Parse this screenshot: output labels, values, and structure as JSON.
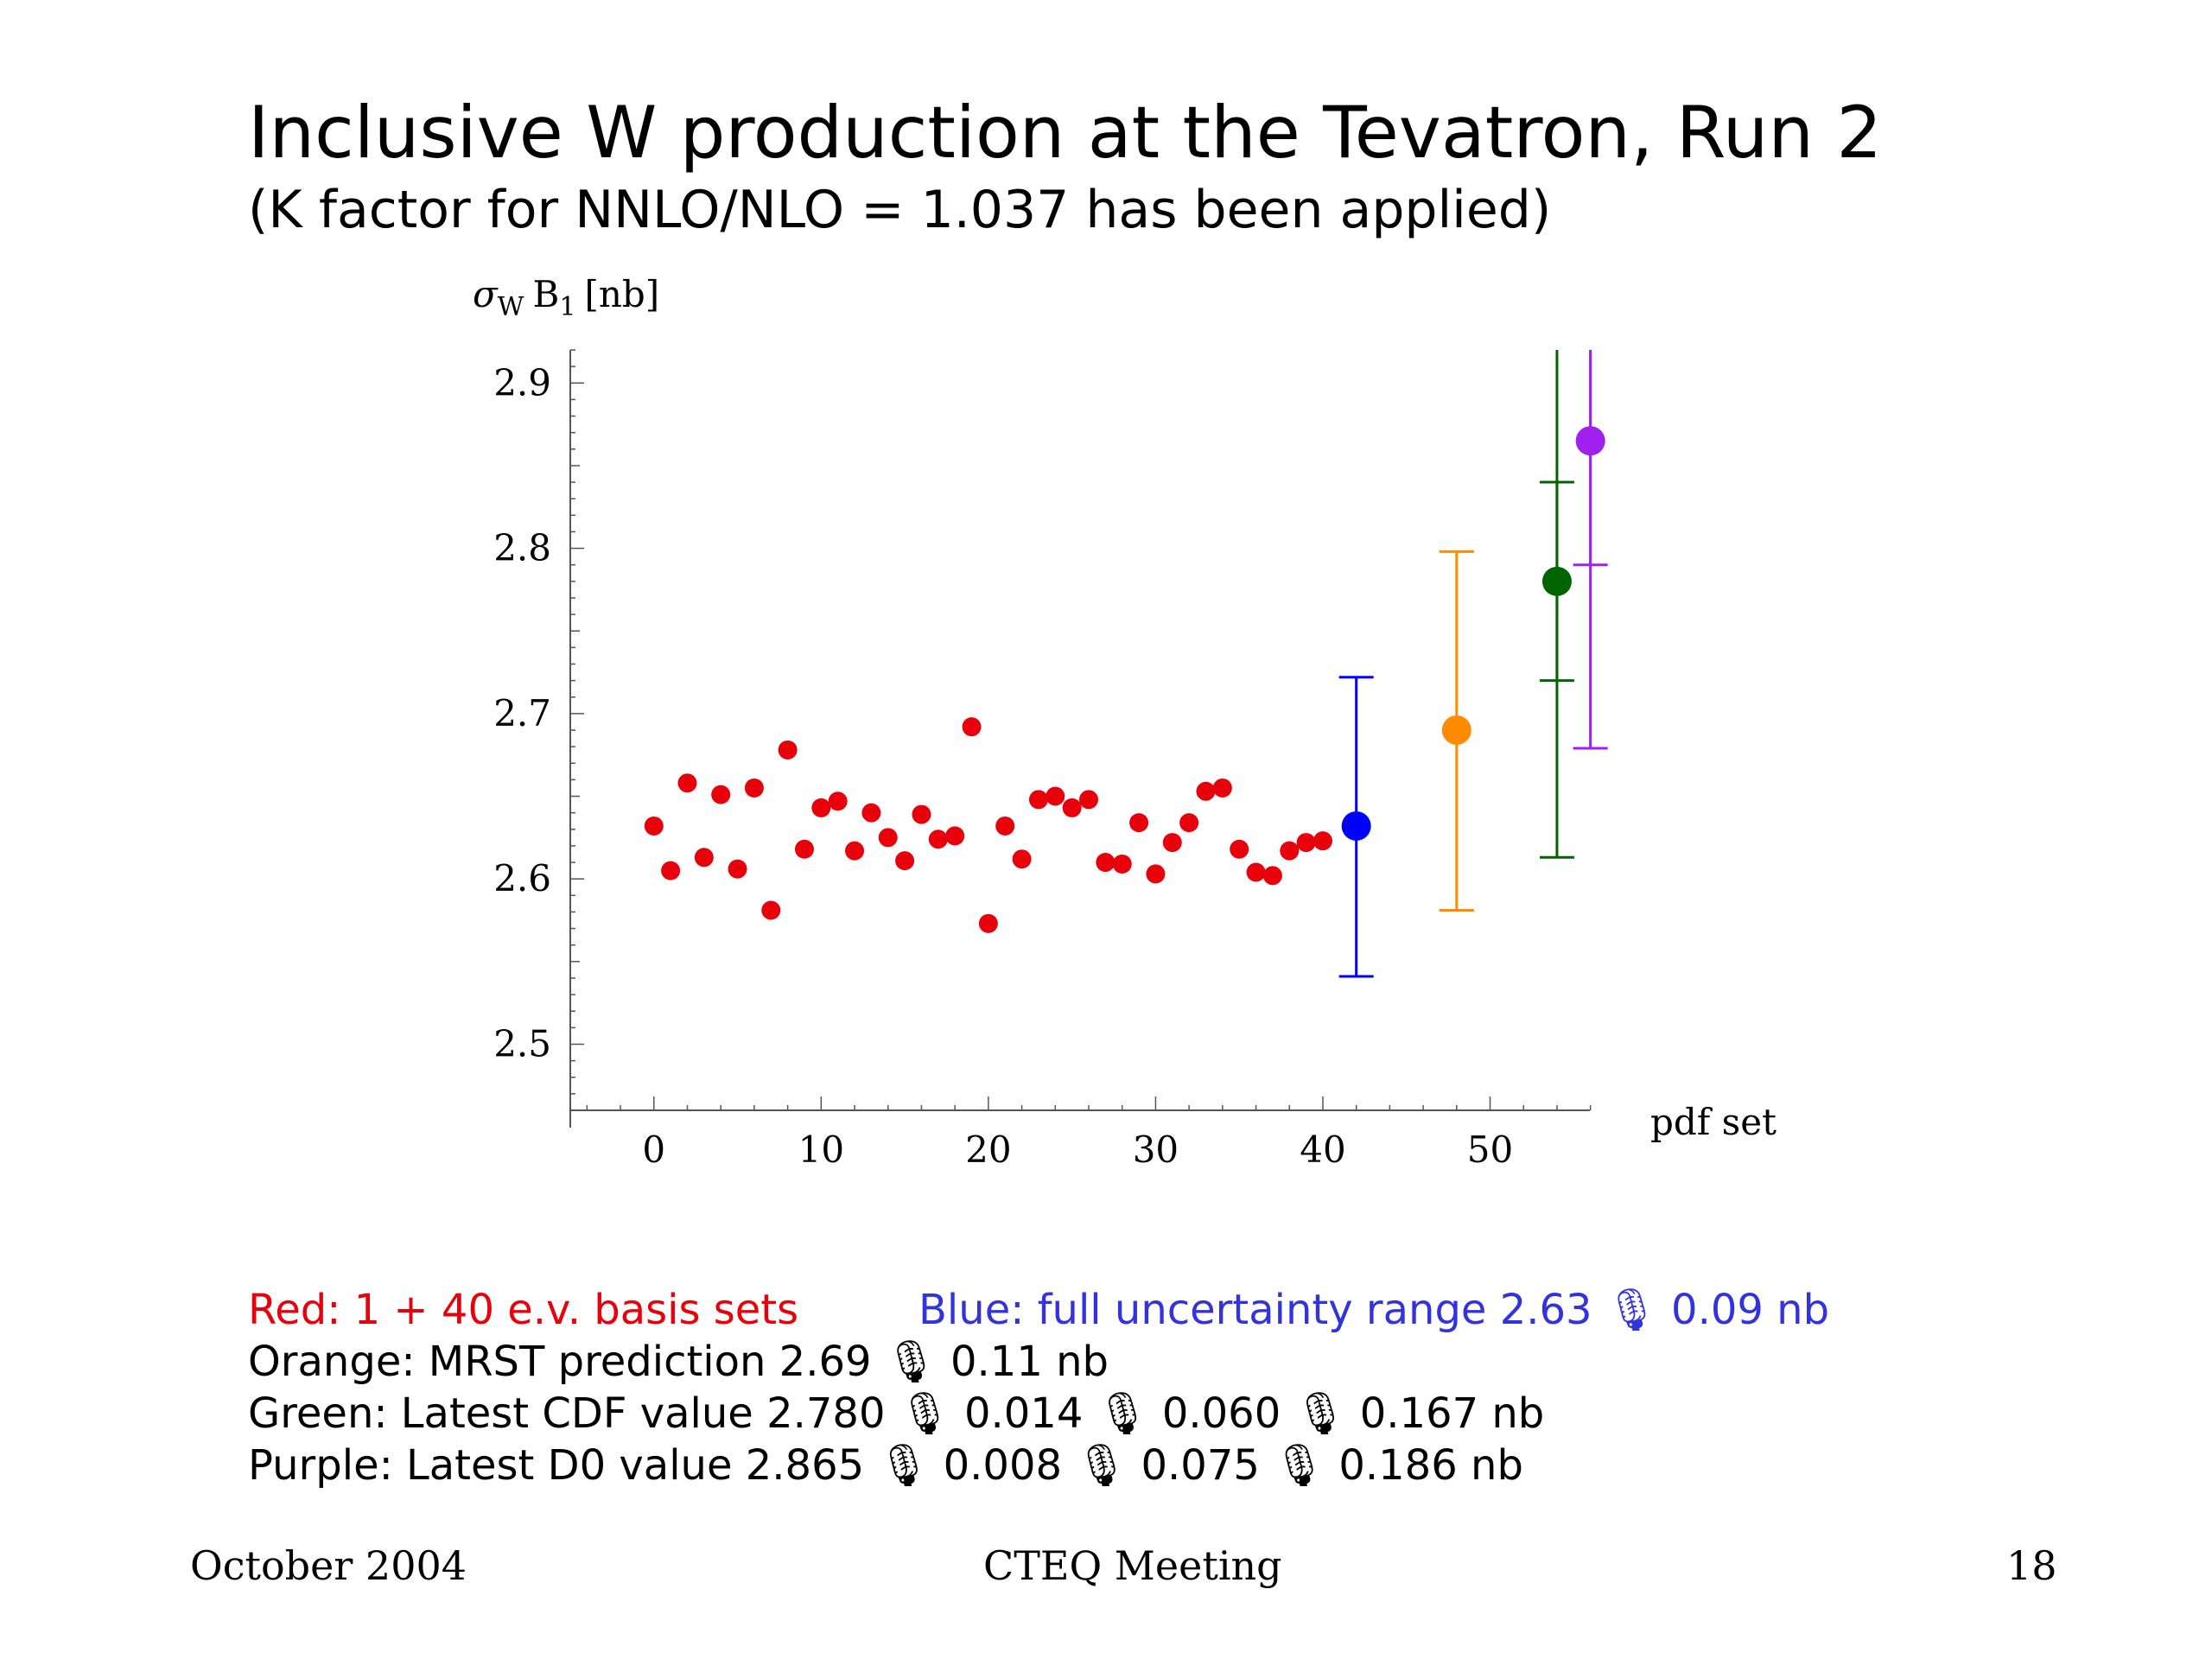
{
  "slide": {
    "title": "Inclusive W production at the Tevatron, Run 2",
    "subtitle": "(K factor for NNLO/NLO = 1.037 has been applied)"
  },
  "chart_data": {
    "type": "scatter",
    "ylabel": "σW B1 [nb]",
    "xlabel": "pdf set",
    "xlim": [
      -5,
      57
    ],
    "ylim": [
      2.46,
      2.92
    ],
    "xticks": [
      0,
      10,
      20,
      30,
      40,
      50
    ],
    "yticks": [
      2.5,
      2.6,
      2.7,
      2.8,
      2.9
    ],
    "grid": false,
    "series": [
      {
        "color": "#e8000b",
        "points": [
          [
            0,
            2.632
          ],
          [
            1,
            2.605
          ],
          [
            2,
            2.658
          ],
          [
            3,
            2.613
          ],
          [
            4,
            2.651
          ],
          [
            5,
            2.606
          ],
          [
            6,
            2.655
          ],
          [
            7,
            2.581
          ],
          [
            8,
            2.678
          ],
          [
            9,
            2.618
          ],
          [
            10,
            2.643
          ],
          [
            11,
            2.647
          ],
          [
            12,
            2.617
          ],
          [
            13,
            2.64
          ],
          [
            14,
            2.625
          ],
          [
            15,
            2.611
          ],
          [
            16,
            2.639
          ],
          [
            17,
            2.624
          ],
          [
            18,
            2.626
          ],
          [
            19,
            2.692
          ],
          [
            20,
            2.573
          ],
          [
            21,
            2.632
          ],
          [
            22,
            2.612
          ],
          [
            23,
            2.648
          ],
          [
            24,
            2.65
          ],
          [
            25,
            2.643
          ],
          [
            26,
            2.648
          ],
          [
            27,
            2.61
          ],
          [
            28,
            2.609
          ],
          [
            29,
            2.634
          ],
          [
            30,
            2.603
          ],
          [
            31,
            2.622
          ],
          [
            32,
            2.634
          ],
          [
            33,
            2.653
          ],
          [
            34,
            2.655
          ],
          [
            35,
            2.618
          ],
          [
            36,
            2.604
          ],
          [
            37,
            2.602
          ],
          [
            38,
            2.617
          ],
          [
            39,
            2.622
          ],
          [
            40,
            2.623
          ]
        ]
      },
      {
        "color": "#0000ff",
        "points": [
          [
            42,
            2.632
          ]
        ],
        "error_bars": [
          {
            "low": 2.541,
            "high": 2.722
          }
        ]
      },
      {
        "color": "#ff8c00",
        "points": [
          [
            48,
            2.69
          ]
        ],
        "error_bars": [
          {
            "low": 2.581,
            "high": 2.798
          }
        ]
      },
      {
        "color": "#006400",
        "points": [
          [
            54,
            2.78
          ]
        ],
        "error_bars": [
          {
            "low": 2.613,
            "high": 2.92
          },
          {
            "low": 2.72,
            "high": 2.84
          }
        ]
      },
      {
        "color": "#a020f0",
        "points": [
          [
            56,
            2.865
          ]
        ],
        "error_bars": [
          {
            "low": 2.679,
            "high": 2.92
          },
          {
            "low": 2.79,
            "high": 2.92
          }
        ]
      }
    ]
  },
  "legend": {
    "red": "Red: 1 + 40 e.v. basis sets",
    "blue": "Blue: full uncertainty range 2.63  🎙  0.09 nb",
    "orange": "Orange: MRST prediction 2.69 🎙 0.11 nb",
    "green": "Green: Latest CDF value 2.780 🎙 0.014 🎙 0.060 🎙 0.167 nb",
    "purple": "Purple: Latest D0 value 2.865 🎙 0.008 🎙 0.075 🎙 0.186 nb"
  },
  "colors": {
    "red": "#e8000b",
    "blue": "#3333dd",
    "orange": "#ff8c00",
    "green": "#006400",
    "purple": "#a020f0"
  },
  "footer": {
    "date": "October 2004",
    "event": "CTEQ Meeting",
    "page": "18"
  }
}
